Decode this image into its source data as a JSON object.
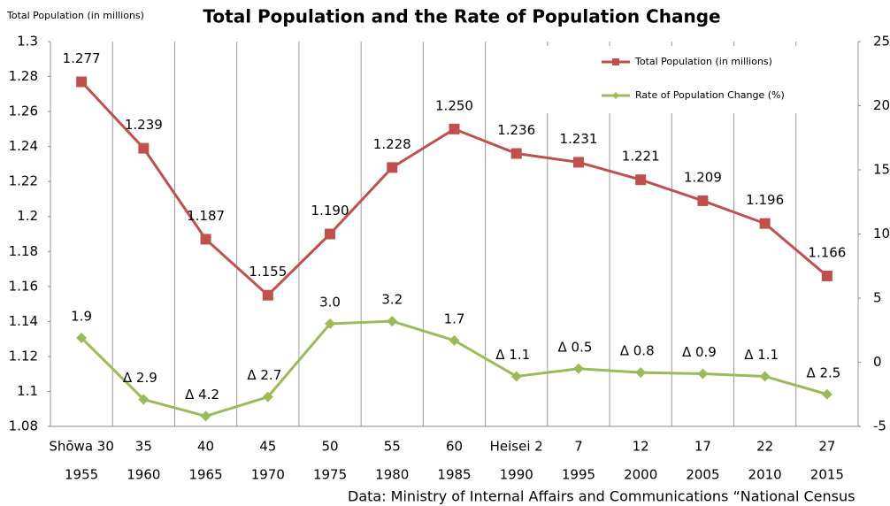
{
  "chart_data": {
    "type": "line",
    "title": "Total Population and the Rate of Population Change",
    "y_axis_label": "Total Population (in millions)",
    "source": "Data: Ministry of Internal Affairs and Communications “National Census",
    "categories": [
      "Shōwa 30",
      "35",
      "40",
      "45",
      "50",
      "55",
      "60",
      "Heisei 2",
      "7",
      "12",
      "17",
      "22",
      "27"
    ],
    "category_years": [
      "1955",
      "1960",
      "1965",
      "1970",
      "1975",
      "1980",
      "1985",
      "1990",
      "1995",
      "2000",
      "2005",
      "2010",
      "2015"
    ],
    "ylim": [
      1.08,
      1.3
    ],
    "yticks": [
      1.08,
      1.1,
      1.12,
      1.14,
      1.16,
      1.18,
      1.2,
      1.22,
      1.24,
      1.26,
      1.28,
      1.3
    ],
    "y2lim": [
      -5,
      25
    ],
    "y2ticks": [
      -5,
      0,
      5,
      10,
      15,
      20,
      25
    ],
    "grid": true,
    "legend": "top-right",
    "series": [
      {
        "name": "Total Population (in millions)",
        "color": "#c0504d",
        "marker": "square",
        "values": [
          1.277,
          1.239,
          1.187,
          1.155,
          1.19,
          1.228,
          1.25,
          1.236,
          1.231,
          1.221,
          1.209,
          1.196,
          1.166
        ],
        "value_labels": [
          "1.277",
          "1.239",
          "1.187",
          "1.155",
          "1.190",
          "1.228",
          "1.250",
          "1.236",
          "1.231",
          "1.221",
          "1.209",
          "1.196",
          "1.166"
        ]
      },
      {
        "name": "Rate of Population Change (%)",
        "color": "#9bbb59",
        "marker": "diamond",
        "axis": "y2",
        "values": [
          1.9,
          -2.9,
          -4.2,
          -2.7,
          3.0,
          3.2,
          1.7,
          -1.1,
          -0.5,
          -0.8,
          -0.9,
          -1.1,
          -2.5
        ],
        "value_labels": [
          "1.9",
          "Δ 2.9",
          "Δ 4.2",
          "Δ 2.7",
          "3.0",
          "3.2",
          "1.7",
          "Δ 1.1",
          "Δ 0.5",
          "Δ 0.8",
          "Δ 0.9",
          "Δ 1.1",
          "Δ 2.5"
        ]
      }
    ]
  }
}
